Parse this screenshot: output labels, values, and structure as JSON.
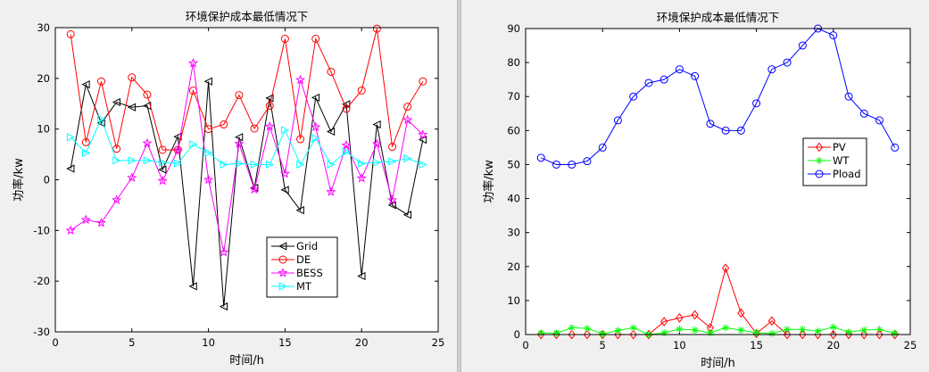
{
  "chart_data": [
    {
      "type": "line",
      "title": "环境保护成本最低情况下",
      "xlabel": "时间/h",
      "ylabel": "功率/kw",
      "xlim": [
        0,
        25
      ],
      "ylim": [
        -30,
        30
      ],
      "xticks": [
        0,
        5,
        10,
        15,
        20,
        25
      ],
      "yticks": [
        -30,
        -20,
        -10,
        0,
        10,
        20,
        30
      ],
      "grid": false,
      "legend_position": "bottom-right",
      "x": [
        1,
        2,
        3,
        4,
        5,
        6,
        7,
        8,
        9,
        10,
        11,
        12,
        13,
        14,
        15,
        16,
        17,
        18,
        19,
        20,
        21,
        22,
        23,
        24
      ],
      "series": [
        {
          "name": "Grid",
          "color": "#000000",
          "marker": "triangle-left",
          "values": [
            2.2,
            18.8,
            11.2,
            15.3,
            14.3,
            14.6,
            2.0,
            8.5,
            -21.0,
            19.4,
            -25.0,
            8.4,
            -1.6,
            16.1,
            -2.0,
            -6.0,
            16.2,
            9.5,
            14.9,
            -19.0,
            10.9,
            -5.0,
            -6.9,
            7.9
          ]
        },
        {
          "name": "DE",
          "color": "#ff0000",
          "marker": "circle",
          "values": [
            28.7,
            7.4,
            19.4,
            6.1,
            20.2,
            16.8,
            5.9,
            5.9,
            17.6,
            10.0,
            10.9,
            16.7,
            10.1,
            14.6,
            27.8,
            8.0,
            27.8,
            21.3,
            14.0,
            17.6,
            29.8,
            6.5,
            14.4,
            19.4
          ]
        },
        {
          "name": "BESS",
          "color": "#ff00ff",
          "marker": "star",
          "values": [
            -10.0,
            -7.9,
            -8.5,
            -4.0,
            0.4,
            7.2,
            -0.2,
            5.8,
            23.0,
            0.0,
            -14.3,
            7.1,
            -1.9,
            10.5,
            1.2,
            19.7,
            10.4,
            -2.4,
            6.8,
            0.3,
            7.1,
            -4.0,
            11.8,
            8.9
          ]
        },
        {
          "name": "MT",
          "color": "#00ffff",
          "marker": "triangle-right",
          "values": [
            8.4,
            5.3,
            12.0,
            3.8,
            3.8,
            3.8,
            3.4,
            3.2,
            7.0,
            5.3,
            3.0,
            3.2,
            3.0,
            3.0,
            9.8,
            3.0,
            8.2,
            3.0,
            5.5,
            3.2,
            3.4,
            3.6,
            4.2,
            3.0
          ]
        }
      ]
    },
    {
      "type": "line",
      "title": "环境保护成本最低情况下",
      "xlabel": "时间/h",
      "ylabel": "功率/kw",
      "xlim": [
        0,
        25
      ],
      "ylim": [
        0,
        90
      ],
      "xticks": [
        0,
        5,
        10,
        15,
        20,
        25
      ],
      "yticks": [
        0,
        10,
        20,
        30,
        40,
        50,
        60,
        70,
        80,
        90
      ],
      "grid": false,
      "legend_position": "middle-right",
      "x": [
        1,
        2,
        3,
        4,
        5,
        6,
        7,
        8,
        9,
        10,
        11,
        12,
        13,
        14,
        15,
        16,
        17,
        18,
        19,
        20,
        21,
        22,
        23,
        24
      ],
      "series": [
        {
          "name": "PV",
          "color": "#ff0000",
          "marker": "diamond",
          "values": [
            0,
            0,
            0,
            0,
            0,
            0,
            0,
            0,
            3.8,
            4.9,
            5.8,
            2.0,
            19.5,
            6.3,
            0.3,
            4.0,
            0,
            0,
            0,
            0,
            0,
            0,
            0,
            0
          ]
        },
        {
          "name": "WT",
          "color": "#00ff00",
          "marker": "asterisk",
          "values": [
            0.5,
            0.4,
            2.0,
            1.8,
            0.2,
            1.2,
            2.0,
            0.0,
            0.5,
            1.6,
            1.3,
            0.5,
            2.0,
            1.3,
            0.5,
            0.3,
            1.5,
            1.5,
            1.0,
            2.2,
            0.7,
            1.3,
            1.5,
            0.4
          ]
        },
        {
          "name": "Pload",
          "color": "#0000ff",
          "marker": "circle",
          "values": [
            52,
            50,
            50,
            51,
            55,
            63,
            70,
            74,
            75,
            78,
            76,
            62,
            60,
            60,
            68,
            78,
            80,
            85,
            90,
            88,
            70,
            65,
            63,
            55
          ]
        }
      ]
    }
  ]
}
